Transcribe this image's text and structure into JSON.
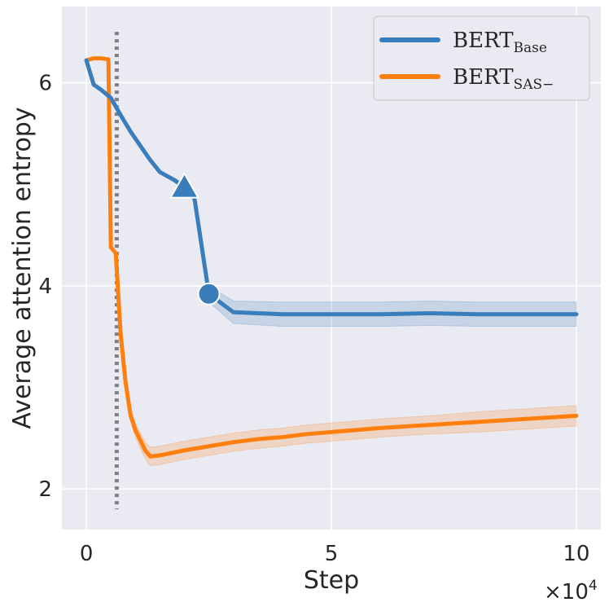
{
  "chart_data": {
    "type": "line",
    "title": "",
    "xlabel": "Step",
    "ylabel": "Average attention entropy",
    "x_multiplier": "×10",
    "x_multiplier_exp": "4",
    "xlim": [
      -0.5,
      10.5
    ],
    "ylim": [
      1.6,
      6.75
    ],
    "xticks": [
      0,
      5,
      10
    ],
    "xtick_labels": [
      "0",
      "5",
      "10"
    ],
    "yticks": [
      2,
      4,
      6
    ],
    "ytick_labels": [
      "2",
      "4",
      "6"
    ],
    "grid": true,
    "legend_position": "top-right",
    "vline": {
      "x": 0.62,
      "y_range": [
        1.8,
        6.5
      ],
      "style": "dotted",
      "color": "#808080"
    },
    "series": [
      {
        "name": "BERT",
        "subscript": "Base",
        "color": "#3a7dbb",
        "x": [
          0,
          0.15,
          0.3,
          0.5,
          0.7,
          0.9,
          1.1,
          1.3,
          1.5,
          1.8,
          2.0,
          2.2,
          2.5,
          3.0,
          4.0,
          5.0,
          6.0,
          7.0,
          8.0,
          9.0,
          10.0
        ],
        "y": [
          6.22,
          5.98,
          5.93,
          5.85,
          5.68,
          5.52,
          5.38,
          5.24,
          5.12,
          5.04,
          4.97,
          4.88,
          3.92,
          3.74,
          3.72,
          3.72,
          3.72,
          3.73,
          3.72,
          3.72,
          3.72
        ],
        "band_half_width": [
          0.0,
          0.0,
          0.0,
          0.0,
          0.0,
          0.0,
          0.0,
          0.0,
          0.0,
          0.02,
          0.03,
          0.05,
          0.08,
          0.11,
          0.12,
          0.12,
          0.12,
          0.12,
          0.12,
          0.12,
          0.12
        ],
        "markers": [
          {
            "x": 2.0,
            "y": 4.97,
            "shape": "triangle"
          },
          {
            "x": 2.5,
            "y": 3.92,
            "shape": "circle"
          }
        ]
      },
      {
        "name": "BERT",
        "subscript": "SAS−",
        "color": "#ff7f0e",
        "x": [
          0,
          0.15,
          0.3,
          0.45,
          0.5,
          0.6,
          0.7,
          0.8,
          0.9,
          1.0,
          1.2,
          1.3,
          1.5,
          2.0,
          3.0,
          3.5,
          4.0,
          4.5,
          5.0,
          5.5,
          6.0,
          7.0,
          8.0,
          9.0,
          10.0
        ],
        "y": [
          6.22,
          6.24,
          6.24,
          6.23,
          4.38,
          4.32,
          3.52,
          3.05,
          2.73,
          2.58,
          2.38,
          2.32,
          2.33,
          2.38,
          2.46,
          2.49,
          2.51,
          2.54,
          2.56,
          2.58,
          2.6,
          2.63,
          2.66,
          2.69,
          2.72
        ],
        "band_half_width": [
          0,
          0,
          0,
          0,
          0,
          0,
          0.02,
          0.04,
          0.06,
          0.07,
          0.08,
          0.09,
          0.09,
          0.09,
          0.09,
          0.09,
          0.09,
          0.09,
          0.09,
          0.09,
          0.09,
          0.09,
          0.1,
          0.1,
          0.1
        ]
      }
    ]
  }
}
